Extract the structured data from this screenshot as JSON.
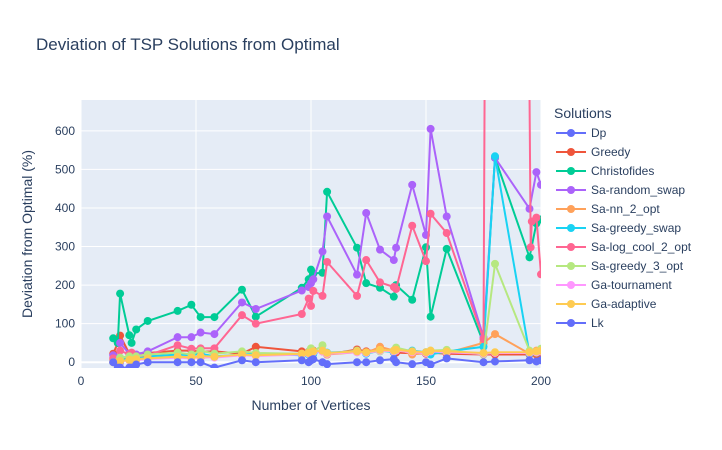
{
  "chart_data": {
    "type": "line",
    "title": "Deviation of TSP Solutions from Optimal",
    "xlabel": "Number of Vertices",
    "ylabel": "Deviation from Optimal (%)",
    "xlim": [
      0,
      200
    ],
    "ylim": [
      -15,
      680
    ],
    "xticks": [
      0,
      50,
      100,
      150,
      200
    ],
    "yticks": [
      0,
      100,
      200,
      300,
      400,
      500,
      600
    ],
    "grid": true,
    "legend_title": "Solutions",
    "legend_position": "right",
    "series": [
      {
        "name": "Dp",
        "color": "#636efa",
        "x": [
          14,
          17
        ],
        "y": [
          0,
          0
        ]
      },
      {
        "name": "Greedy",
        "color": "#EF553B",
        "x": [
          14,
          16,
          17,
          21,
          29,
          42,
          48,
          52,
          58,
          70,
          76,
          96,
          99,
          100,
          101,
          105,
          107,
          120,
          124,
          130,
          136,
          137,
          144,
          150,
          152,
          159,
          175,
          180,
          195,
          198,
          200
        ],
        "y": [
          22,
          50,
          69,
          22,
          24,
          30,
          30,
          27,
          28,
          22,
          40,
          28,
          27,
          24,
          30,
          28,
          20,
          33,
          28,
          34,
          25,
          25,
          23,
          22,
          25,
          22,
          20,
          20,
          20,
          20,
          22
        ]
      },
      {
        "name": "Christofides",
        "color": "#00cc96",
        "x": [
          14,
          16,
          17,
          21,
          22,
          24,
          29,
          42,
          48,
          52,
          58,
          70,
          76,
          96,
          99,
          100,
          101,
          105,
          107,
          120,
          124,
          130,
          136,
          137,
          144,
          150,
          152,
          159,
          175,
          180,
          195,
          198,
          200
        ],
        "y": [
          62,
          50,
          178,
          70,
          50,
          85,
          107,
          133,
          149,
          117,
          117,
          188,
          118,
          193,
          215,
          240,
          230,
          232,
          442,
          297,
          205,
          193,
          170,
          200,
          162,
          298,
          118,
          294,
          50,
          530,
          272,
          360,
          370
        ]
      },
      {
        "name": "Sa-random_swap",
        "color": "#ab63fa",
        "x": [
          14,
          16,
          17,
          21,
          22,
          24,
          29,
          42,
          48,
          52,
          58,
          70,
          76,
          96,
          99,
          100,
          101,
          105,
          107,
          120,
          124,
          130,
          136,
          137,
          144,
          150,
          152,
          159,
          175,
          180,
          195,
          198,
          200
        ],
        "y": [
          18,
          10,
          50,
          22,
          20,
          20,
          28,
          65,
          65,
          77,
          73,
          155,
          138,
          186,
          195,
          205,
          215,
          287,
          378,
          227,
          387,
          292,
          265,
          297,
          460,
          330,
          605,
          378,
          65,
          530,
          398,
          493,
          460
        ]
      },
      {
        "name": "Sa-nn_2_opt",
        "color": "#FFA15A",
        "x": [
          14,
          16,
          17,
          21,
          22,
          24,
          29,
          42,
          48,
          52,
          58,
          70,
          76,
          96,
          99,
          100,
          101,
          105,
          107,
          120,
          124,
          130,
          136,
          137,
          144,
          150,
          152,
          159,
          175,
          180,
          195,
          198,
          200
        ],
        "y": [
          5,
          5,
          10,
          8,
          6,
          5,
          10,
          15,
          12,
          12,
          14,
          18,
          20,
          22,
          24,
          25,
          26,
          28,
          20,
          26,
          24,
          40,
          30,
          36,
          20,
          24,
          26,
          24,
          50,
          73,
          22,
          30,
          28
        ]
      },
      {
        "name": "Sa-greedy_swap",
        "color": "#19d3f3",
        "x": [
          14,
          16,
          17,
          21,
          22,
          24,
          29,
          42,
          48,
          52,
          58,
          70,
          76,
          96,
          99,
          100,
          101,
          105,
          107,
          120,
          124,
          130,
          136,
          137,
          144,
          150,
          152,
          159,
          175,
          180,
          195,
          198,
          200
        ],
        "y": [
          0,
          0,
          5,
          10,
          8,
          12,
          15,
          20,
          18,
          22,
          15,
          20,
          22,
          18,
          20,
          26,
          22,
          30,
          25,
          28,
          22,
          30,
          26,
          32,
          30,
          26,
          20,
          28,
          40,
          534,
          22,
          25,
          28
        ]
      },
      {
        "name": "Sa-log_cool_2_opt",
        "color": "#FF6692",
        "x": [
          14,
          16,
          17,
          21,
          22,
          24,
          29,
          42,
          48,
          52,
          58,
          70,
          76,
          96,
          99,
          100,
          101,
          105,
          107,
          120,
          124,
          130,
          136,
          137,
          144,
          150,
          152,
          159,
          175,
          175.5,
          195,
          195.5,
          196,
          198,
          200
        ],
        "y": [
          10,
          5,
          30,
          20,
          25,
          15,
          18,
          44,
          35,
          36,
          36,
          122,
          100,
          125,
          165,
          146,
          185,
          172,
          260,
          172,
          265,
          207,
          195,
          190,
          354,
          262,
          385,
          335,
          60,
          700,
          700,
          298,
          365,
          375,
          228
        ]
      },
      {
        "name": "Sa-greedy_3_opt",
        "color": "#B6E880",
        "x": [
          14,
          16,
          17,
          21,
          22,
          24,
          29,
          42,
          48,
          52,
          58,
          70,
          76,
          96,
          99,
          100,
          101,
          105,
          107,
          120,
          124,
          130,
          136,
          137,
          144,
          150,
          152,
          159,
          175,
          180,
          195,
          198,
          200
        ],
        "y": [
          0,
          0,
          12,
          15,
          10,
          15,
          20,
          25,
          20,
          30,
          22,
          28,
          24,
          22,
          26,
          36,
          28,
          44,
          22,
          30,
          25,
          28,
          30,
          38,
          28,
          24,
          30,
          32,
          20,
          255,
          30,
          25,
          35
        ]
      },
      {
        "name": "Ga-tournament",
        "color": "#FF97FF",
        "x": [
          14,
          16,
          17,
          21,
          22,
          24,
          29,
          42,
          48,
          52,
          58,
          70,
          76,
          96,
          99,
          100,
          101,
          105,
          107,
          120,
          124,
          130,
          136,
          137,
          144,
          150,
          152,
          159,
          175,
          180,
          195,
          198,
          200
        ],
        "y": [
          0,
          0,
          2,
          5,
          4,
          6,
          8,
          12,
          10,
          14,
          12,
          18,
          16,
          20,
          22,
          24,
          26,
          28,
          22,
          26,
          24,
          30,
          28,
          30,
          26,
          24,
          28,
          26,
          22,
          24,
          24,
          26,
          28
        ]
      },
      {
        "name": "Ga-adaptive",
        "color": "#FECB52",
        "x": [
          14,
          16,
          17,
          21,
          22,
          24,
          29,
          42,
          48,
          52,
          58,
          70,
          76,
          96,
          99,
          100,
          101,
          105,
          107,
          120,
          124,
          130,
          136,
          137,
          144,
          150,
          152,
          159,
          175,
          180,
          195,
          198,
          200
        ],
        "y": [
          0,
          0,
          3,
          6,
          5,
          8,
          10,
          14,
          12,
          16,
          14,
          20,
          18,
          22,
          24,
          26,
          28,
          30,
          24,
          28,
          26,
          32,
          30,
          32,
          28,
          26,
          30,
          28,
          24,
          26,
          26,
          28,
          30
        ]
      },
      {
        "name": "Lk",
        "color": "#636efa",
        "x": [
          14,
          16,
          17,
          21,
          22,
          24,
          29,
          42,
          48,
          52,
          58,
          70,
          76,
          96,
          99,
          100,
          101,
          105,
          107,
          120,
          124,
          130,
          136,
          137,
          144,
          150,
          152,
          159,
          175,
          180,
          195,
          198,
          200
        ],
        "y": [
          0,
          -14,
          -14,
          -14,
          -14,
          -6,
          0,
          0,
          0,
          0,
          -14,
          5,
          0,
          5,
          0,
          5,
          8,
          0,
          -5,
          0,
          0,
          5,
          8,
          0,
          -5,
          0,
          -6,
          10,
          0,
          2,
          5,
          2,
          5
        ]
      }
    ]
  }
}
